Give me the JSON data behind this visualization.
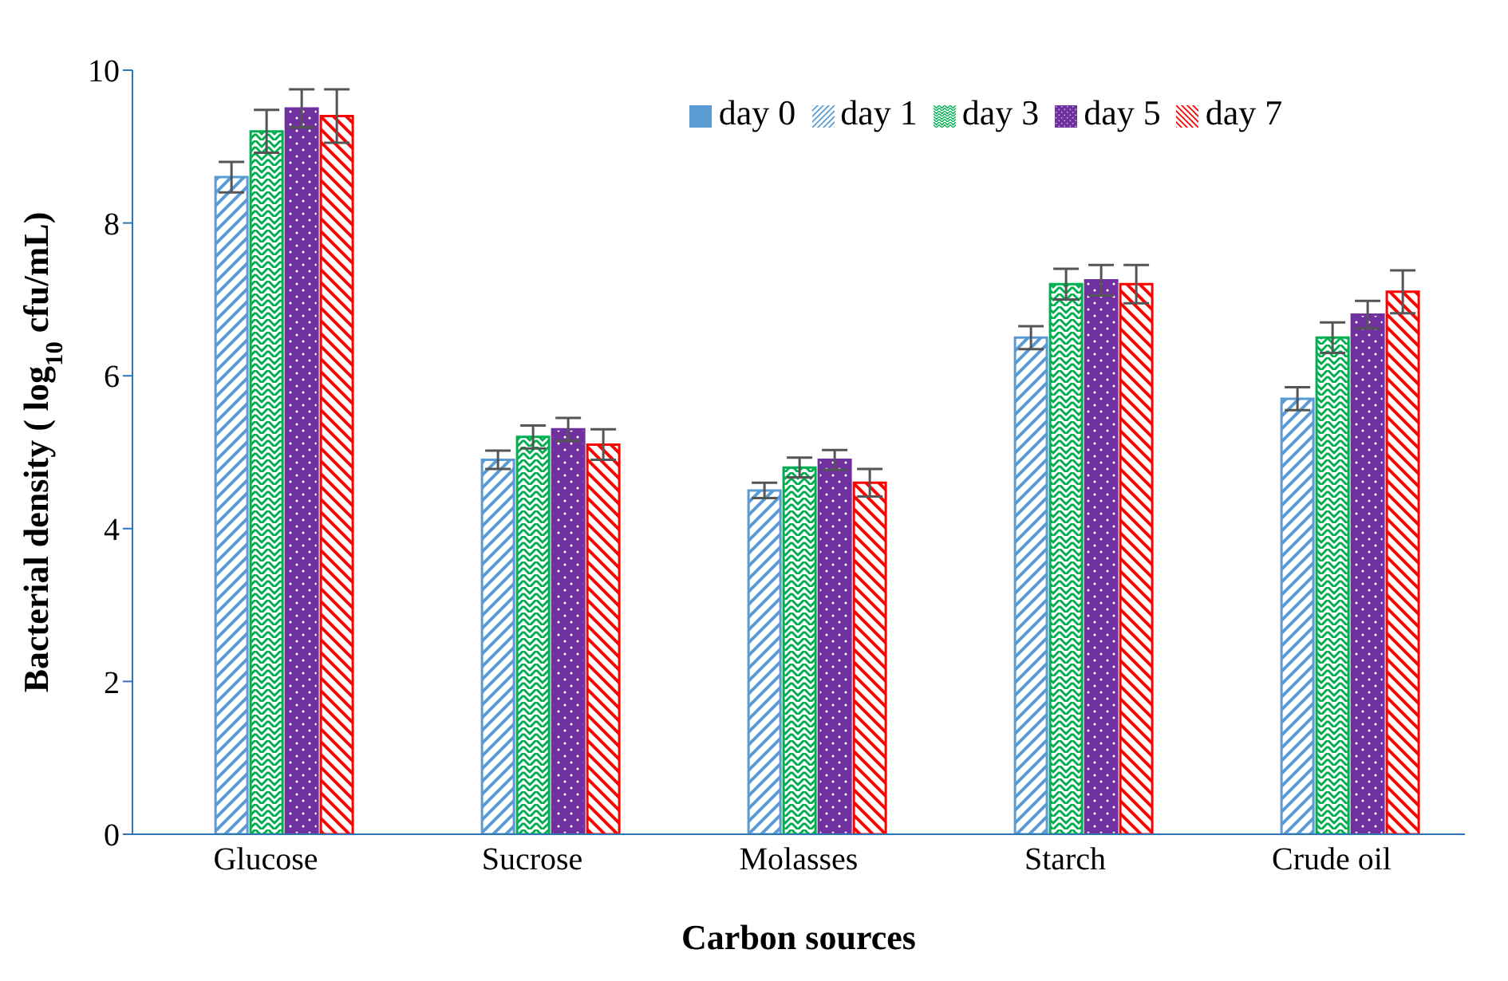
{
  "chart_data": {
    "type": "bar",
    "xlabel": "Carbon sources",
    "ylabel": "Bacterial density ( log$_{10}$ cfu/mL)",
    "categories": [
      "Glucose",
      "Sucrose",
      "Molasses",
      "Starch",
      "Crude oil"
    ],
    "series": [
      {
        "name": "day 0",
        "color": "#5b9bd5",
        "values": [
          null,
          null,
          null,
          null,
          null
        ]
      },
      {
        "name": "day 1",
        "color": "#5b9bd5",
        "values": [
          8.6,
          4.9,
          4.5,
          6.5,
          5.7
        ],
        "errors": [
          0.2,
          0.12,
          0.1,
          0.15,
          0.15
        ]
      },
      {
        "name": "day 3",
        "color": "#00b050",
        "values": [
          9.2,
          5.2,
          4.8,
          7.2,
          6.5
        ],
        "errors": [
          0.28,
          0.15,
          0.13,
          0.2,
          0.2
        ]
      },
      {
        "name": "day 5",
        "color": "#7030a0",
        "values": [
          9.5,
          5.3,
          4.9,
          7.25,
          6.8
        ],
        "errors": [
          0.25,
          0.15,
          0.13,
          0.2,
          0.18
        ]
      },
      {
        "name": "day 7",
        "color": "#ff0000",
        "values": [
          9.4,
          5.1,
          4.6,
          7.2,
          7.1
        ],
        "errors": [
          0.35,
          0.2,
          0.18,
          0.25,
          0.28
        ]
      }
    ],
    "ylim": [
      0,
      10
    ],
    "yticks": [
      0,
      2,
      4,
      6,
      8,
      10
    ],
    "grid": false,
    "legend": "top"
  }
}
